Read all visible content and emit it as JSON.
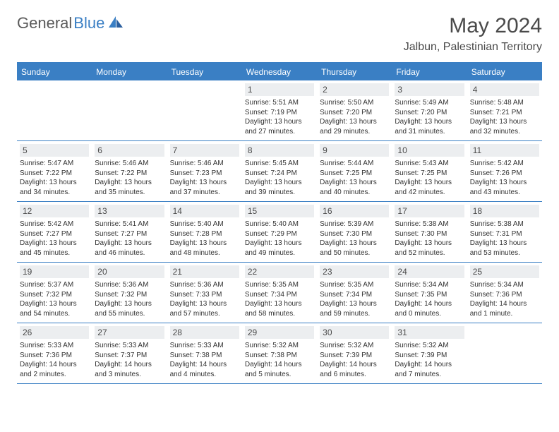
{
  "logo": {
    "part1": "General",
    "part2": "Blue"
  },
  "title": "May 2024",
  "location": "Jalbun, Palestinian Territory",
  "weekdays": [
    "Sunday",
    "Monday",
    "Tuesday",
    "Wednesday",
    "Thursday",
    "Friday",
    "Saturday"
  ],
  "header_bg": "#3a7fc4",
  "daynum_bg": "#eceef0",
  "weeks": [
    [
      {
        "n": "",
        "lines": []
      },
      {
        "n": "",
        "lines": []
      },
      {
        "n": "",
        "lines": []
      },
      {
        "n": "1",
        "lines": [
          "Sunrise: 5:51 AM",
          "Sunset: 7:19 PM",
          "Daylight: 13 hours",
          "and 27 minutes."
        ]
      },
      {
        "n": "2",
        "lines": [
          "Sunrise: 5:50 AM",
          "Sunset: 7:20 PM",
          "Daylight: 13 hours",
          "and 29 minutes."
        ]
      },
      {
        "n": "3",
        "lines": [
          "Sunrise: 5:49 AM",
          "Sunset: 7:20 PM",
          "Daylight: 13 hours",
          "and 31 minutes."
        ]
      },
      {
        "n": "4",
        "lines": [
          "Sunrise: 5:48 AM",
          "Sunset: 7:21 PM",
          "Daylight: 13 hours",
          "and 32 minutes."
        ]
      }
    ],
    [
      {
        "n": "5",
        "lines": [
          "Sunrise: 5:47 AM",
          "Sunset: 7:22 PM",
          "Daylight: 13 hours",
          "and 34 minutes."
        ]
      },
      {
        "n": "6",
        "lines": [
          "Sunrise: 5:46 AM",
          "Sunset: 7:22 PM",
          "Daylight: 13 hours",
          "and 35 minutes."
        ]
      },
      {
        "n": "7",
        "lines": [
          "Sunrise: 5:46 AM",
          "Sunset: 7:23 PM",
          "Daylight: 13 hours",
          "and 37 minutes."
        ]
      },
      {
        "n": "8",
        "lines": [
          "Sunrise: 5:45 AM",
          "Sunset: 7:24 PM",
          "Daylight: 13 hours",
          "and 39 minutes."
        ]
      },
      {
        "n": "9",
        "lines": [
          "Sunrise: 5:44 AM",
          "Sunset: 7:25 PM",
          "Daylight: 13 hours",
          "and 40 minutes."
        ]
      },
      {
        "n": "10",
        "lines": [
          "Sunrise: 5:43 AM",
          "Sunset: 7:25 PM",
          "Daylight: 13 hours",
          "and 42 minutes."
        ]
      },
      {
        "n": "11",
        "lines": [
          "Sunrise: 5:42 AM",
          "Sunset: 7:26 PM",
          "Daylight: 13 hours",
          "and 43 minutes."
        ]
      }
    ],
    [
      {
        "n": "12",
        "lines": [
          "Sunrise: 5:42 AM",
          "Sunset: 7:27 PM",
          "Daylight: 13 hours",
          "and 45 minutes."
        ]
      },
      {
        "n": "13",
        "lines": [
          "Sunrise: 5:41 AM",
          "Sunset: 7:27 PM",
          "Daylight: 13 hours",
          "and 46 minutes."
        ]
      },
      {
        "n": "14",
        "lines": [
          "Sunrise: 5:40 AM",
          "Sunset: 7:28 PM",
          "Daylight: 13 hours",
          "and 48 minutes."
        ]
      },
      {
        "n": "15",
        "lines": [
          "Sunrise: 5:40 AM",
          "Sunset: 7:29 PM",
          "Daylight: 13 hours",
          "and 49 minutes."
        ]
      },
      {
        "n": "16",
        "lines": [
          "Sunrise: 5:39 AM",
          "Sunset: 7:30 PM",
          "Daylight: 13 hours",
          "and 50 minutes."
        ]
      },
      {
        "n": "17",
        "lines": [
          "Sunrise: 5:38 AM",
          "Sunset: 7:30 PM",
          "Daylight: 13 hours",
          "and 52 minutes."
        ]
      },
      {
        "n": "18",
        "lines": [
          "Sunrise: 5:38 AM",
          "Sunset: 7:31 PM",
          "Daylight: 13 hours",
          "and 53 minutes."
        ]
      }
    ],
    [
      {
        "n": "19",
        "lines": [
          "Sunrise: 5:37 AM",
          "Sunset: 7:32 PM",
          "Daylight: 13 hours",
          "and 54 minutes."
        ]
      },
      {
        "n": "20",
        "lines": [
          "Sunrise: 5:36 AM",
          "Sunset: 7:32 PM",
          "Daylight: 13 hours",
          "and 55 minutes."
        ]
      },
      {
        "n": "21",
        "lines": [
          "Sunrise: 5:36 AM",
          "Sunset: 7:33 PM",
          "Daylight: 13 hours",
          "and 57 minutes."
        ]
      },
      {
        "n": "22",
        "lines": [
          "Sunrise: 5:35 AM",
          "Sunset: 7:34 PM",
          "Daylight: 13 hours",
          "and 58 minutes."
        ]
      },
      {
        "n": "23",
        "lines": [
          "Sunrise: 5:35 AM",
          "Sunset: 7:34 PM",
          "Daylight: 13 hours",
          "and 59 minutes."
        ]
      },
      {
        "n": "24",
        "lines": [
          "Sunrise: 5:34 AM",
          "Sunset: 7:35 PM",
          "Daylight: 14 hours",
          "and 0 minutes."
        ]
      },
      {
        "n": "25",
        "lines": [
          "Sunrise: 5:34 AM",
          "Sunset: 7:36 PM",
          "Daylight: 14 hours",
          "and 1 minute."
        ]
      }
    ],
    [
      {
        "n": "26",
        "lines": [
          "Sunrise: 5:33 AM",
          "Sunset: 7:36 PM",
          "Daylight: 14 hours",
          "and 2 minutes."
        ]
      },
      {
        "n": "27",
        "lines": [
          "Sunrise: 5:33 AM",
          "Sunset: 7:37 PM",
          "Daylight: 14 hours",
          "and 3 minutes."
        ]
      },
      {
        "n": "28",
        "lines": [
          "Sunrise: 5:33 AM",
          "Sunset: 7:38 PM",
          "Daylight: 14 hours",
          "and 4 minutes."
        ]
      },
      {
        "n": "29",
        "lines": [
          "Sunrise: 5:32 AM",
          "Sunset: 7:38 PM",
          "Daylight: 14 hours",
          "and 5 minutes."
        ]
      },
      {
        "n": "30",
        "lines": [
          "Sunrise: 5:32 AM",
          "Sunset: 7:39 PM",
          "Daylight: 14 hours",
          "and 6 minutes."
        ]
      },
      {
        "n": "31",
        "lines": [
          "Sunrise: 5:32 AM",
          "Sunset: 7:39 PM",
          "Daylight: 14 hours",
          "and 7 minutes."
        ]
      },
      {
        "n": "",
        "lines": []
      }
    ]
  ]
}
